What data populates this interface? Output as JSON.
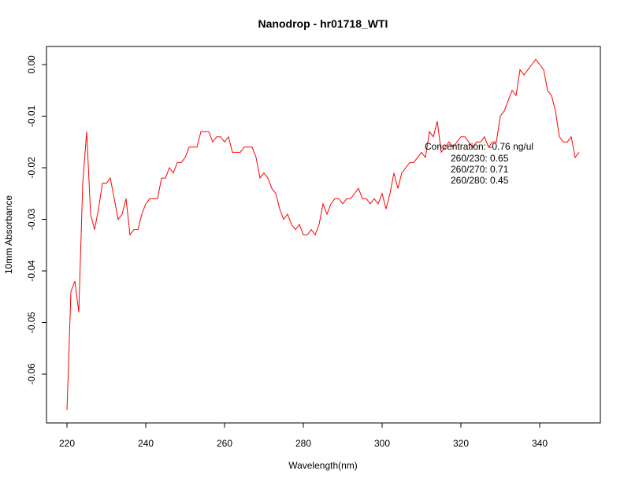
{
  "chart_data": {
    "type": "line",
    "title": "Nanodrop - hr01718_WTI",
    "xlabel": "Wavelength(nm)",
    "ylabel": "10mm Absorbance",
    "xlim": [
      220,
      350
    ],
    "ylim": [
      -0.067,
      0.001
    ],
    "x_ticks": [
      220,
      240,
      260,
      280,
      300,
      320,
      340
    ],
    "y_ticks": [
      0.0,
      -0.01,
      -0.02,
      -0.03,
      -0.04,
      -0.05,
      -0.06
    ],
    "x_tick_labels": [
      "220",
      "240",
      "260",
      "280",
      "300",
      "320",
      "340"
    ],
    "y_tick_labels": [
      "0.00",
      "-0.01",
      "-0.02",
      "-0.03",
      "-0.04",
      "-0.05",
      "-0.06"
    ],
    "grid": false,
    "line_color": "#ff0000",
    "series": [
      {
        "x": [
          220,
          221,
          222,
          223,
          224,
          225,
          226,
          227,
          228,
          229,
          230,
          231,
          232,
          233,
          234,
          235,
          236,
          237,
          238,
          239,
          240,
          241,
          242,
          243,
          244,
          245,
          246,
          247,
          248,
          249,
          250,
          251,
          252,
          253,
          254,
          255,
          256,
          257,
          258,
          259,
          260,
          261,
          262,
          263,
          264,
          265,
          266,
          267,
          268,
          269,
          270,
          271,
          272,
          273,
          274,
          275,
          276,
          277,
          278,
          279,
          280,
          281,
          282,
          283,
          284,
          285,
          286,
          287,
          288,
          289,
          290,
          291,
          292,
          293,
          294,
          295,
          296,
          297,
          298,
          299,
          300,
          301,
          302,
          303,
          304,
          305,
          306,
          307,
          308,
          309,
          310,
          311,
          312,
          313,
          314,
          315,
          316,
          317,
          318,
          319,
          320,
          321,
          322,
          323,
          324,
          325,
          326,
          327,
          328,
          329,
          330,
          331,
          332,
          333,
          334,
          335,
          336,
          337,
          338,
          339,
          340,
          341,
          342,
          343,
          344,
          345,
          346,
          347,
          348,
          349,
          350
        ],
        "values": [
          -0.067,
          -0.044,
          -0.042,
          -0.048,
          -0.023,
          -0.013,
          -0.029,
          -0.032,
          -0.028,
          -0.023,
          -0.023,
          -0.022,
          -0.026,
          -0.03,
          -0.029,
          -0.026,
          -0.033,
          -0.032,
          -0.032,
          -0.029,
          -0.027,
          -0.026,
          -0.026,
          -0.026,
          -0.022,
          -0.022,
          -0.02,
          -0.021,
          -0.019,
          -0.019,
          -0.018,
          -0.016,
          -0.016,
          -0.016,
          -0.013,
          -0.013,
          -0.013,
          -0.015,
          -0.014,
          -0.014,
          -0.015,
          -0.014,
          -0.017,
          -0.017,
          -0.017,
          -0.016,
          -0.016,
          -0.016,
          -0.018,
          -0.022,
          -0.021,
          -0.022,
          -0.024,
          -0.025,
          -0.028,
          -0.03,
          -0.029,
          -0.031,
          -0.032,
          -0.031,
          -0.033,
          -0.033,
          -0.032,
          -0.033,
          -0.031,
          -0.027,
          -0.029,
          -0.027,
          -0.026,
          -0.026,
          -0.027,
          -0.026,
          -0.026,
          -0.025,
          -0.024,
          -0.026,
          -0.026,
          -0.027,
          -0.026,
          -0.027,
          -0.025,
          -0.028,
          -0.025,
          -0.021,
          -0.024,
          -0.021,
          -0.02,
          -0.019,
          -0.019,
          -0.018,
          -0.017,
          -0.018,
          -0.013,
          -0.014,
          -0.011,
          -0.017,
          -0.016,
          -0.015,
          -0.016,
          -0.015,
          -0.014,
          -0.014,
          -0.015,
          -0.016,
          -0.015,
          -0.015,
          -0.014,
          -0.016,
          -0.015,
          -0.015,
          -0.01,
          -0.009,
          -0.007,
          -0.005,
          -0.006,
          -0.001,
          -0.002,
          -0.001,
          0.0,
          0.001,
          0.0,
          -0.001,
          -0.005,
          -0.006,
          -0.009,
          -0.014,
          -0.015,
          -0.015,
          -0.014,
          -0.018,
          -0.017
        ]
      }
    ],
    "annotations": [
      "Concentration: -0.76 ng/ul",
      "260/230: 0.65",
      "260/270: 0.71",
      "260/280: 0.45"
    ]
  }
}
